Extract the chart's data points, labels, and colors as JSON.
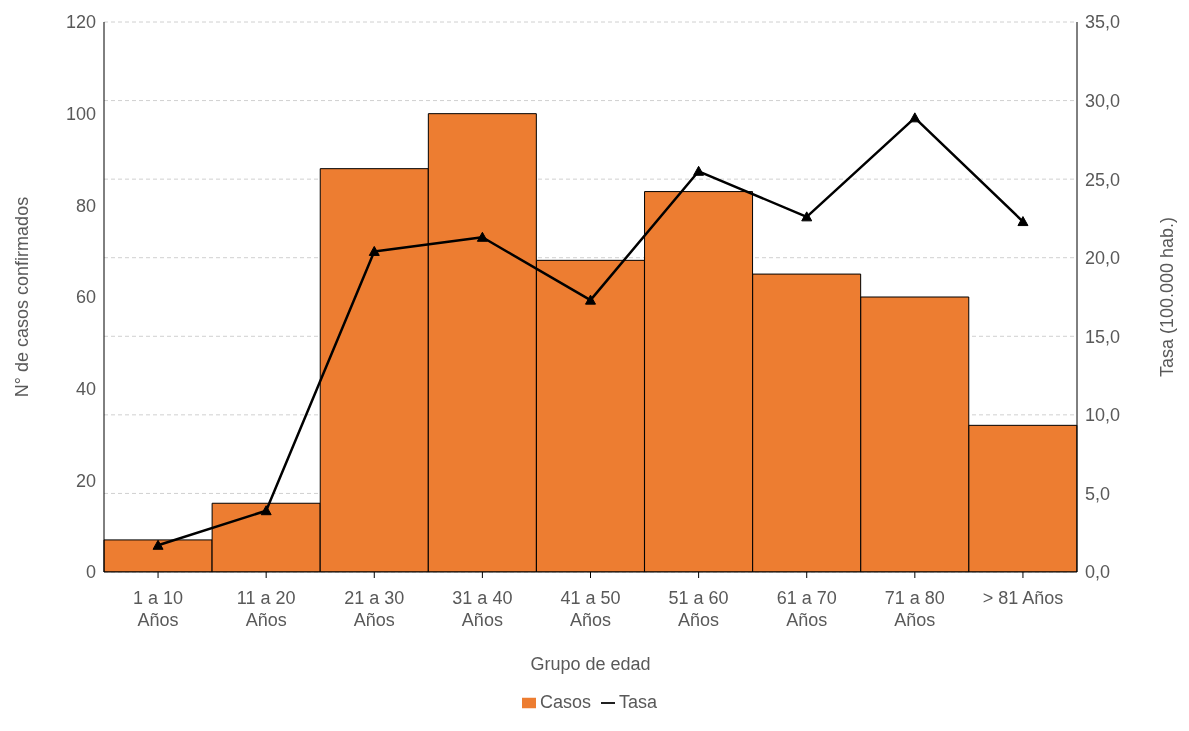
{
  "chart_data": {
    "type": "bar",
    "categories": [
      "1 a 10 Años",
      "11 a 20 Años",
      "21 a 30 Años",
      "31 a 40 Años",
      "41 a 50 Años",
      "51 a 60 Años",
      "61 a 70 Años",
      "71 a 80 Años",
      "> 81 Años"
    ],
    "series": [
      {
        "name": "Casos",
        "color": "#ed7d31",
        "values": [
          7,
          15,
          88,
          100,
          68,
          83,
          65,
          60,
          32
        ]
      },
      {
        "name": "Tasa",
        "type": "line",
        "axis": "y2",
        "color": "#000000",
        "marker": "triangle",
        "values": [
          1.7,
          3.9,
          20.4,
          21.3,
          17.3,
          25.5,
          22.6,
          28.9,
          22.3
        ]
      }
    ],
    "xlabel": "Grupo de edad",
    "ylabel": "N° de casos confirmados",
    "y2label": "Tasa (100.000 hab.)",
    "ylim": [
      0,
      120
    ],
    "yticks": [
      0,
      20,
      40,
      60,
      80,
      100,
      120
    ],
    "y2lim": [
      0,
      35
    ],
    "y2ticks": [
      {
        "value": 0,
        "label": "0,0"
      },
      {
        "value": 5,
        "label": "5,0"
      },
      {
        "value": 10,
        "label": "10,0"
      },
      {
        "value": 15,
        "label": "15,0"
      },
      {
        "value": 20,
        "label": "20,0"
      },
      {
        "value": 25,
        "label": "25,0"
      },
      {
        "value": 30,
        "label": "30,0"
      },
      {
        "value": 35,
        "label": "35,0"
      }
    ],
    "grid": "y2",
    "legend": "bottom"
  }
}
